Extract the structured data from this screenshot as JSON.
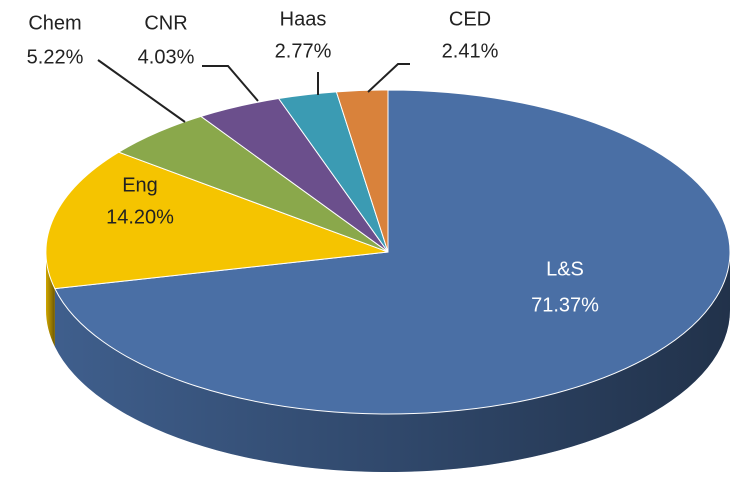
{
  "chart_data": {
    "type": "pie",
    "categories": [
      "L&S",
      "Eng",
      "Chem",
      "CNR",
      "Haas",
      "CED"
    ],
    "values": [
      71.37,
      14.2,
      5.22,
      4.03,
      2.77,
      2.41
    ],
    "value_labels": [
      "71.37%",
      "14.20%",
      "5.22%",
      "4.03%",
      "2.77%",
      "2.41%"
    ],
    "colors": [
      "#4a6fa5",
      "#f5c400",
      "#8aa84b",
      "#6b4f8c",
      "#3b9bb3",
      "#d9823b"
    ]
  }
}
